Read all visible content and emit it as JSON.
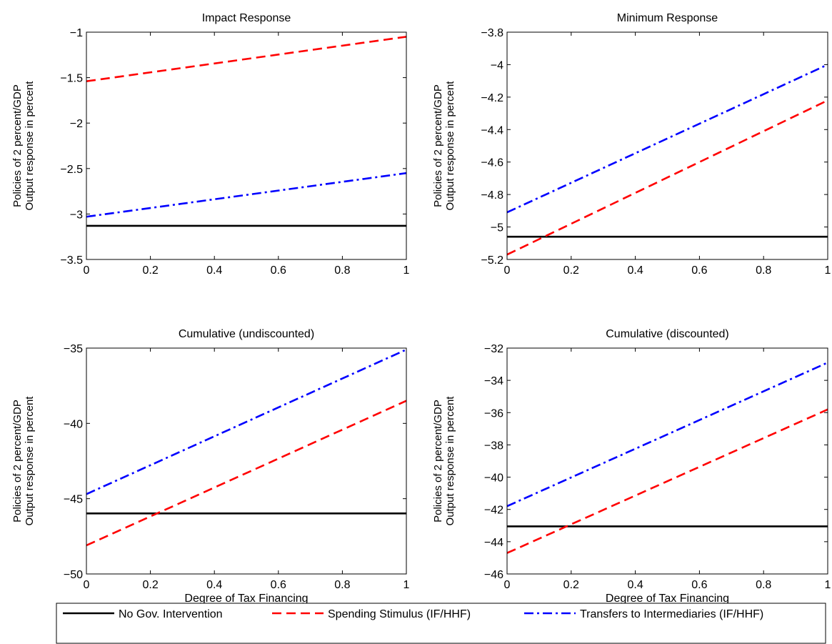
{
  "figure": {
    "legend_placement": "bottom",
    "legend": [
      {
        "label": "No Gov. Intervention",
        "color": "#000000",
        "dash": "solid"
      },
      {
        "label": "Spending Stimulus (IF/HHF)",
        "color": "#ff0000",
        "dash": "dashed"
      },
      {
        "label": "Transfers to Intermediaries (IF/HHF)",
        "color": "#0000ff",
        "dash": "dash-dot"
      }
    ]
  },
  "chart_data": [
    {
      "type": "line",
      "title": "Impact Response",
      "xlabel": "",
      "ylabel_lines": [
        "Policies of 2 percent/GDP",
        "Output response in percent"
      ],
      "xlim": [
        0,
        1
      ],
      "ylim": [
        -3.5,
        -1
      ],
      "xticks": [
        0,
        0.2,
        0.4,
        0.6,
        0.8,
        1
      ],
      "xtick_labels": [
        "0",
        "0.2",
        "0.4",
        "0.6",
        "0.8",
        "1"
      ],
      "yticks": [
        -3.5,
        -3,
        -2.5,
        -2,
        -1.5,
        -1
      ],
      "ytick_labels": [
        "−3.5",
        "−3",
        "−2.5",
        "−2",
        "−1.5",
        "−1"
      ],
      "grid": false,
      "series": [
        {
          "name": "No Gov. Intervention",
          "x": [
            0,
            1
          ],
          "y": [
            -3.13,
            -3.13
          ]
        },
        {
          "name": "Spending Stimulus (IF/HHF)",
          "x": [
            0,
            1
          ],
          "y": [
            -1.54,
            -1.05
          ]
        },
        {
          "name": "Transfers to Intermediaries (IF/HHF)",
          "x": [
            0,
            1
          ],
          "y": [
            -3.03,
            -2.55
          ]
        }
      ]
    },
    {
      "type": "line",
      "title": "Minimum Response",
      "xlabel": "",
      "ylabel_lines": [
        "Policies of 2 percent/GDP",
        "Output response in percent"
      ],
      "xlim": [
        0,
        1
      ],
      "ylim": [
        -5.2,
        -3.8
      ],
      "xticks": [
        0,
        0.2,
        0.4,
        0.6,
        0.8,
        1
      ],
      "xtick_labels": [
        "0",
        "0.2",
        "0.4",
        "0.6",
        "0.8",
        "1"
      ],
      "yticks": [
        -5.2,
        -5,
        -4.8,
        -4.6,
        -4.4,
        -4.2,
        -4,
        -3.8
      ],
      "ytick_labels": [
        "−5.2",
        "−5",
        "−4.8",
        "−4.6",
        "−4.4",
        "−4.2",
        "−4",
        "−3.8"
      ],
      "grid": false,
      "series": [
        {
          "name": "No Gov. Intervention",
          "x": [
            0,
            1
          ],
          "y": [
            -5.06,
            -5.06
          ]
        },
        {
          "name": "Spending Stimulus (IF/HHF)",
          "x": [
            0,
            1
          ],
          "y": [
            -5.17,
            -4.22
          ]
        },
        {
          "name": "Transfers to Intermediaries (IF/HHF)",
          "x": [
            0,
            1
          ],
          "y": [
            -4.91,
            -4.0
          ]
        }
      ]
    },
    {
      "type": "line",
      "title": "Cumulative (undiscounted)",
      "xlabel": "Degree of Tax Financing",
      "ylabel_lines": [
        "Policies of 2 percent/GDP",
        "Output response in percent"
      ],
      "xlim": [
        0,
        1
      ],
      "ylim": [
        -50,
        -35
      ],
      "xticks": [
        0,
        0.2,
        0.4,
        0.6,
        0.8,
        1
      ],
      "xtick_labels": [
        "0",
        "0.2",
        "0.4",
        "0.6",
        "0.8",
        "1"
      ],
      "yticks": [
        -50,
        -45,
        -40,
        -35
      ],
      "ytick_labels": [
        "−50",
        "−45",
        "−40",
        "−35"
      ],
      "grid": false,
      "series": [
        {
          "name": "No Gov. Intervention",
          "x": [
            0,
            1
          ],
          "y": [
            -45.98,
            -45.98
          ]
        },
        {
          "name": "Spending Stimulus (IF/HHF)",
          "x": [
            0,
            1
          ],
          "y": [
            -48.1,
            -38.5
          ]
        },
        {
          "name": "Transfers to Intermediaries (IF/HHF)",
          "x": [
            0,
            1
          ],
          "y": [
            -44.7,
            -35.1
          ]
        }
      ]
    },
    {
      "type": "line",
      "title": "Cumulative (discounted)",
      "xlabel": "Degree of Tax Financing",
      "ylabel_lines": [
        "Policies of 2 percent/GDP",
        "Output response in percent"
      ],
      "xlim": [
        0,
        1
      ],
      "ylim": [
        -46,
        -32
      ],
      "xticks": [
        0,
        0.2,
        0.4,
        0.6,
        0.8,
        1
      ],
      "xtick_labels": [
        "0",
        "0.2",
        "0.4",
        "0.6",
        "0.8",
        "1"
      ],
      "yticks": [
        -46,
        -44,
        -42,
        -40,
        -38,
        -36,
        -34,
        -32
      ],
      "ytick_labels": [
        "−46",
        "−44",
        "−42",
        "−40",
        "−38",
        "−36",
        "−34",
        "−32"
      ],
      "grid": false,
      "series": [
        {
          "name": "No Gov. Intervention",
          "x": [
            0,
            1
          ],
          "y": [
            -43.05,
            -43.05
          ]
        },
        {
          "name": "Spending Stimulus (IF/HHF)",
          "x": [
            0,
            1
          ],
          "y": [
            -44.7,
            -35.8
          ]
        },
        {
          "name": "Transfers to Intermediaries (IF/HHF)",
          "x": [
            0,
            1
          ],
          "y": [
            -41.8,
            -32.9
          ]
        }
      ]
    }
  ]
}
